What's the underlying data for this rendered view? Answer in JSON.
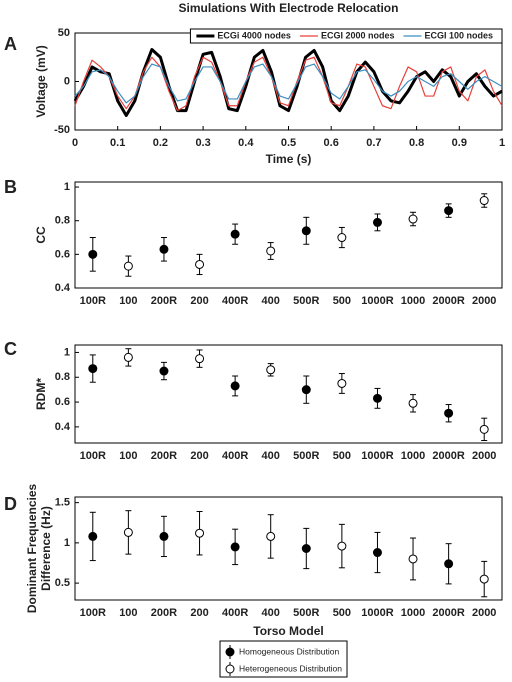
{
  "chart_data": [
    {
      "type": "line",
      "label": "A",
      "title": "Simulations With Electrode Relocation",
      "xlabel": "Time (s)",
      "ylabel": "Voltage (mV)",
      "xlim": [
        0,
        1
      ],
      "xticks": [
        0,
        0.1,
        0.2,
        0.3,
        0.4,
        0.5,
        0.6,
        0.7,
        0.8,
        0.9,
        1
      ],
      "ylim": [
        -50,
        50
      ],
      "yticks": [
        -50,
        0,
        50
      ],
      "legend": "upper right",
      "x": [
        0,
        0.02,
        0.04,
        0.06,
        0.08,
        0.1,
        0.12,
        0.14,
        0.16,
        0.18,
        0.2,
        0.22,
        0.24,
        0.26,
        0.28,
        0.3,
        0.32,
        0.34,
        0.36,
        0.38,
        0.4,
        0.42,
        0.44,
        0.46,
        0.48,
        0.5,
        0.52,
        0.54,
        0.56,
        0.58,
        0.6,
        0.62,
        0.64,
        0.66,
        0.68,
        0.7,
        0.72,
        0.74,
        0.76,
        0.78,
        0.8,
        0.82,
        0.84,
        0.86,
        0.88,
        0.9,
        0.92,
        0.94,
        0.96,
        0.98,
        1
      ],
      "series": [
        {
          "name": "ECGi 4000 nodes",
          "color": "#000000",
          "values": [
            -20,
            -5,
            15,
            10,
            8,
            -20,
            -35,
            -20,
            10,
            33,
            25,
            -5,
            -30,
            -30,
            0,
            28,
            30,
            5,
            -28,
            -30,
            -5,
            25,
            32,
            10,
            -25,
            -30,
            -5,
            25,
            32,
            15,
            -20,
            -30,
            -15,
            10,
            20,
            10,
            -10,
            -20,
            -22,
            -10,
            5,
            10,
            0,
            12,
            5,
            -15,
            0,
            8,
            -5,
            -15,
            -10
          ]
        },
        {
          "name": "ECGI 2000 nodes",
          "color": "#e8403a",
          "values": [
            -25,
            0,
            22,
            15,
            5,
            -15,
            -28,
            -15,
            10,
            25,
            15,
            -10,
            -30,
            -25,
            5,
            25,
            20,
            0,
            -25,
            -25,
            0,
            20,
            25,
            5,
            -22,
            -25,
            0,
            22,
            25,
            5,
            -22,
            -25,
            -5,
            18,
            15,
            -5,
            -25,
            -28,
            -5,
            15,
            10,
            -15,
            -15,
            10,
            15,
            -10,
            -20,
            5,
            12,
            -10,
            -25
          ]
        },
        {
          "name": "ECGI 100 nodes",
          "color": "#3a8fc0",
          "values": [
            -15,
            -5,
            10,
            12,
            5,
            -10,
            -22,
            -15,
            5,
            18,
            15,
            -5,
            -20,
            -18,
            0,
            15,
            15,
            0,
            -18,
            -18,
            0,
            15,
            18,
            5,
            -15,
            -18,
            -2,
            15,
            18,
            5,
            -12,
            -18,
            -5,
            10,
            12,
            2,
            -10,
            -15,
            -10,
            0,
            5,
            0,
            -5,
            5,
            8,
            0,
            -8,
            0,
            5,
            0,
            -5
          ]
        }
      ]
    },
    {
      "type": "errorbar",
      "label": "B",
      "ylabel": "CC",
      "categories": [
        "100R",
        "100",
        "200R",
        "200",
        "400R",
        "400",
        "500R",
        "500",
        "1000R",
        "1000",
        "2000R",
        "2000"
      ],
      "ylim": [
        0.4,
        1.03
      ],
      "yticks": [
        0.4,
        0.6,
        0.8,
        1
      ],
      "series": [
        {
          "color": "#000000",
          "values": [
            0.6,
            null,
            0.63,
            null,
            0.72,
            null,
            0.74,
            null,
            0.79,
            null,
            0.86,
            null
          ],
          "errors": [
            0.1,
            null,
            0.07,
            null,
            0.06,
            null,
            0.08,
            null,
            0.05,
            null,
            0.04,
            null
          ]
        },
        {
          "color": "#ffffff",
          "values": [
            null,
            0.53,
            null,
            0.54,
            null,
            0.62,
            null,
            0.7,
            null,
            0.81,
            null,
            0.92
          ],
          "errors": [
            null,
            0.06,
            null,
            0.06,
            null,
            0.05,
            null,
            0.06,
            null,
            0.04,
            null,
            0.04
          ]
        }
      ]
    },
    {
      "type": "errorbar",
      "label": "C",
      "ylabel": "RDM*",
      "categories": [
        "100R",
        "100",
        "200R",
        "200",
        "400R",
        "400",
        "500R",
        "500",
        "1000R",
        "1000",
        "2000R",
        "2000"
      ],
      "ylim": [
        0.27,
        1.06
      ],
      "yticks": [
        0.4,
        0.6,
        0.8,
        1
      ],
      "series": [
        {
          "color": "#000000",
          "values": [
            0.87,
            null,
            0.85,
            null,
            0.73,
            null,
            0.7,
            null,
            0.63,
            null,
            0.51,
            null
          ],
          "errors": [
            0.11,
            null,
            0.07,
            null,
            0.08,
            null,
            0.11,
            null,
            0.08,
            null,
            0.07,
            null
          ]
        },
        {
          "color": "#ffffff",
          "values": [
            null,
            0.96,
            null,
            0.95,
            null,
            0.86,
            null,
            0.75,
            null,
            0.59,
            null,
            0.38
          ],
          "errors": [
            null,
            0.07,
            null,
            0.07,
            null,
            0.05,
            null,
            0.08,
            null,
            0.07,
            null,
            0.09
          ]
        }
      ]
    },
    {
      "type": "errorbar",
      "label": "D",
      "ylabel": [
        "Dominant Frequencies",
        "Difference (Hz)"
      ],
      "xlabel": "Torso Model",
      "categories": [
        "100R",
        "100",
        "200R",
        "200",
        "400R",
        "400",
        "500R",
        "500",
        "1000R",
        "1000",
        "2000R",
        "2000"
      ],
      "ylim": [
        0.29,
        1.57
      ],
      "yticks": [
        0.5,
        1,
        1.5
      ],
      "legend": "bottom",
      "series": [
        {
          "name": "Homogeneous Distribution",
          "color": "#000000",
          "values": [
            1.08,
            null,
            1.08,
            null,
            0.95,
            null,
            0.93,
            null,
            0.88,
            null,
            0.74,
            null
          ],
          "errors": [
            0.3,
            null,
            0.25,
            null,
            0.22,
            null,
            0.25,
            null,
            0.25,
            null,
            0.25,
            null
          ]
        },
        {
          "name": "Heterogeneous Distribution",
          "color": "#ffffff",
          "values": [
            null,
            1.13,
            null,
            1.12,
            null,
            1.08,
            null,
            0.96,
            null,
            0.8,
            null,
            0.55
          ],
          "errors": [
            null,
            0.27,
            null,
            0.27,
            null,
            0.27,
            null,
            0.27,
            null,
            0.26,
            null,
            0.22
          ]
        }
      ]
    }
  ]
}
